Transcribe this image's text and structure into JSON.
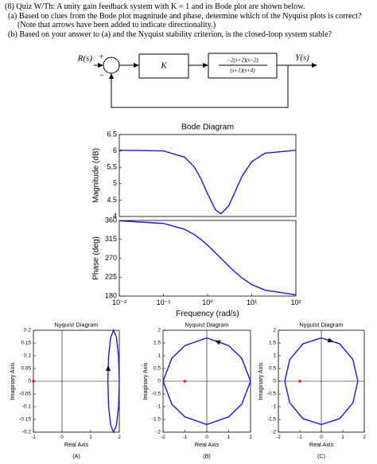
{
  "question": {
    "heading": "(8) Quiz W/Th: A unity gain feedback system with K = 1 and its Bode plot are shown below.",
    "parts": [
      "(a) Based on clues from the Bode plot magnitude and phase, determine which of the Nyquist plots is correct? (Note that arrows have been added to indicate directionality.)",
      "(b) Based on your answer to (a) and the Nyquist stability criterion, is the closed-loop system stable?"
    ]
  },
  "block_diagram": {
    "input": "R(s)",
    "plus": "+",
    "minus": "−",
    "gain": "K",
    "numerator": "−2(s+2)(s−2)",
    "denominator": "(s+1)(s+4)",
    "output": "Y(s)"
  },
  "chart_data": [
    {
      "type": "line",
      "title": "Bode Diagram",
      "ylabel": "Magnitude (dB)",
      "xscale": "log",
      "x": [
        0.01,
        0.1,
        0.3,
        0.5,
        0.7,
        1,
        1.5,
        2,
        3,
        4,
        6,
        10,
        20,
        100
      ],
      "series": [
        {
          "color": "#1a1acc",
          "values": [
            6.02,
            6.0,
            5.81,
            5.51,
            5.16,
            4.69,
            4.21,
            4.08,
            4.32,
            4.69,
            5.22,
            5.67,
            5.93,
            6.02
          ]
        }
      ],
      "xlim": [
        0.01,
        100
      ],
      "ylim": [
        4,
        6.5
      ],
      "yticks": [
        4,
        4.5,
        5,
        5.5,
        6,
        6.5
      ]
    },
    {
      "type": "line",
      "ylabel": "Phase (deg)",
      "xlabel": "Frequency (rad/s)",
      "xscale": "log",
      "x": [
        0.01,
        0.1,
        0.3,
        0.5,
        0.7,
        1,
        1.5,
        2,
        3,
        4,
        6,
        10,
        20,
        100
      ],
      "series": [
        {
          "color": "#1a1acc",
          "values": [
            359.3,
            352.9,
            339.0,
            326.3,
            315.1,
            301.0,
            283.1,
            270.0,
            251.6,
            239.0,
            223.1,
            207.5,
            194.2,
            182.9
          ]
        }
      ],
      "xlim": [
        0.01,
        100
      ],
      "ylim": [
        180,
        360
      ],
      "yticks": [
        180,
        225,
        270,
        315,
        360
      ],
      "xticks": [
        {
          "value": 0.01,
          "label": "10⁻²"
        },
        {
          "value": 0.1,
          "label": "10⁻¹"
        },
        {
          "value": 1,
          "label": "10⁰"
        },
        {
          "value": 10,
          "label": "10¹"
        },
        {
          "value": 100,
          "label": "10²"
        }
      ]
    },
    {
      "type": "line",
      "title": "Nyquist Diagram",
      "xlabel": "Real Axis",
      "ylabel": "Imaginary Axis",
      "caption": "(A)",
      "x": [
        2.0,
        1.973,
        1.9,
        1.8,
        1.7,
        1.627,
        1.6,
        1.627,
        1.7,
        1.8,
        1.9,
        1.973,
        2.0
      ],
      "series": [
        {
          "color": "#1a1acc",
          "values": [
            0,
            0.1,
            0.173,
            0.2,
            0.173,
            0.1,
            0,
            -0.1,
            -0.173,
            -0.2,
            -0.173,
            -0.1,
            0
          ]
        }
      ],
      "markers": [
        {
          "x": -1,
          "y": 0,
          "color": "#e02020"
        }
      ],
      "xlim": [
        -1,
        2
      ],
      "ylim": [
        -0.2,
        0.2
      ],
      "xticks": [
        -1,
        0,
        1,
        2
      ],
      "yticks": [
        -0.2,
        -0.15,
        -0.1,
        -0.05,
        0,
        0.05,
        0.1,
        0.15,
        0.2
      ]
    },
    {
      "type": "line",
      "title": "Nyquist Diagram",
      "xlabel": "Real Axis",
      "ylabel": "Imaginary Axis",
      "caption": "(B)",
      "x": [
        2,
        1.6,
        1,
        0,
        -1,
        -1.6,
        -2,
        -1.6,
        -1,
        0,
        1,
        1.6,
        2
      ],
      "series": [
        {
          "color": "#1a1acc",
          "values": [
            0,
            0.9,
            1.4,
            1.7,
            1.4,
            0.9,
            0,
            -0.9,
            -1.4,
            -1.7,
            -1.4,
            -0.9,
            0
          ]
        }
      ],
      "markers": [
        {
          "x": -1,
          "y": 0,
          "color": "#e02020"
        }
      ],
      "xlim": [
        -2,
        2
      ],
      "ylim": [
        -2,
        2
      ],
      "xticks": [
        -2,
        -1,
        0,
        1,
        2
      ],
      "yticks": [
        -2,
        -1.5,
        -1,
        -0.5,
        0,
        0.5,
        1,
        1.5,
        2
      ]
    },
    {
      "type": "line",
      "title": "Nyquist Diagram",
      "xlabel": "Real Axis",
      "ylabel": "Imaginary Axis",
      "caption": "(C)",
      "x": [
        1.7,
        1.472,
        0.85,
        0,
        -0.85,
        -1.472,
        -1.7,
        -1.472,
        -0.85,
        0,
        0.85,
        1.472,
        1.7
      ],
      "series": [
        {
          "color": "#1a1acc",
          "values": [
            0,
            0.85,
            1.472,
            1.7,
            1.472,
            0.85,
            0,
            -0.85,
            -1.472,
            -1.7,
            -1.472,
            -0.85,
            0
          ]
        }
      ],
      "markers": [
        {
          "x": -1,
          "y": 0,
          "color": "#e02020"
        }
      ],
      "xlim": [
        -2,
        2
      ],
      "ylim": [
        -2,
        2
      ],
      "xticks": [
        -2,
        -1,
        0,
        1,
        2
      ],
      "yticks": [
        -2,
        -1.5,
        -1,
        -0.5,
        0,
        0.5,
        1,
        1.5,
        2
      ]
    }
  ]
}
